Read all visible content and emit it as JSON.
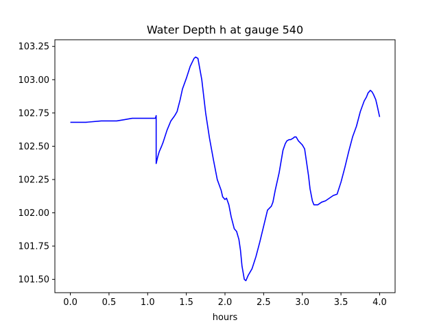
{
  "chart_data": {
    "type": "line",
    "title": "Water Depth h at gauge 540",
    "xlabel": "hours",
    "ylabel": "",
    "xlim": [
      -0.2,
      4.2
    ],
    "ylim": [
      101.4,
      103.3
    ],
    "grid": false,
    "x_ticks": [
      0.0,
      0.5,
      1.0,
      1.5,
      2.0,
      2.5,
      3.0,
      3.5,
      4.0
    ],
    "x_tick_labels": [
      "0.0",
      "0.5",
      "1.0",
      "1.5",
      "2.0",
      "2.5",
      "3.0",
      "3.5",
      "4.0"
    ],
    "y_ticks": [
      101.5,
      101.75,
      102.0,
      102.25,
      102.5,
      102.75,
      103.0,
      103.25
    ],
    "y_tick_labels": [
      "101.50",
      "101.75",
      "102.00",
      "102.25",
      "102.50",
      "102.75",
      "103.00",
      "103.25"
    ],
    "series": [
      {
        "color": "#0000ff",
        "x": [
          0.0,
          0.2,
          0.4,
          0.6,
          0.7,
          0.8,
          0.9,
          1.0,
          1.05,
          1.1,
          1.11,
          1.11,
          1.13,
          1.15,
          1.18,
          1.2,
          1.25,
          1.3,
          1.35,
          1.38,
          1.42,
          1.45,
          1.5,
          1.55,
          1.6,
          1.62,
          1.65,
          1.7,
          1.75,
          1.8,
          1.85,
          1.9,
          1.95,
          1.97,
          2.0,
          2.02,
          2.05,
          2.08,
          2.12,
          2.15,
          2.18,
          2.2,
          2.22,
          2.25,
          2.27,
          2.3,
          2.35,
          2.4,
          2.45,
          2.5,
          2.55,
          2.6,
          2.62,
          2.65,
          2.7,
          2.75,
          2.78,
          2.8,
          2.83,
          2.85,
          2.88,
          2.9,
          2.92,
          2.95,
          3.0,
          3.03,
          3.05,
          3.08,
          3.1,
          3.13,
          3.15,
          3.2,
          3.25,
          3.3,
          3.35,
          3.4,
          3.45,
          3.5,
          3.55,
          3.6,
          3.65,
          3.7,
          3.75,
          3.8,
          3.83,
          3.85,
          3.88,
          3.9,
          3.92,
          3.95,
          3.97,
          4.0
        ],
        "y": [
          102.68,
          102.68,
          102.69,
          102.69,
          102.7,
          102.71,
          102.71,
          102.71,
          102.71,
          102.71,
          102.73,
          102.37,
          102.42,
          102.46,
          102.5,
          102.53,
          102.62,
          102.69,
          102.73,
          102.76,
          102.85,
          102.93,
          103.01,
          103.1,
          103.16,
          103.17,
          103.16,
          103.0,
          102.75,
          102.56,
          102.4,
          102.25,
          102.17,
          102.12,
          102.1,
          102.11,
          102.06,
          101.97,
          101.88,
          101.86,
          101.8,
          101.72,
          101.6,
          101.5,
          101.49,
          101.53,
          101.58,
          101.67,
          101.78,
          101.9,
          102.02,
          102.05,
          102.08,
          102.17,
          102.3,
          102.47,
          102.52,
          102.54,
          102.55,
          102.55,
          102.56,
          102.57,
          102.57,
          102.54,
          102.51,
          102.48,
          102.4,
          102.28,
          102.18,
          102.09,
          102.06,
          102.06,
          102.08,
          102.09,
          102.11,
          102.13,
          102.14,
          102.23,
          102.34,
          102.46,
          102.57,
          102.65,
          102.76,
          102.84,
          102.87,
          102.9,
          102.92,
          102.91,
          102.89,
          102.85,
          102.8,
          102.72
        ]
      }
    ]
  }
}
